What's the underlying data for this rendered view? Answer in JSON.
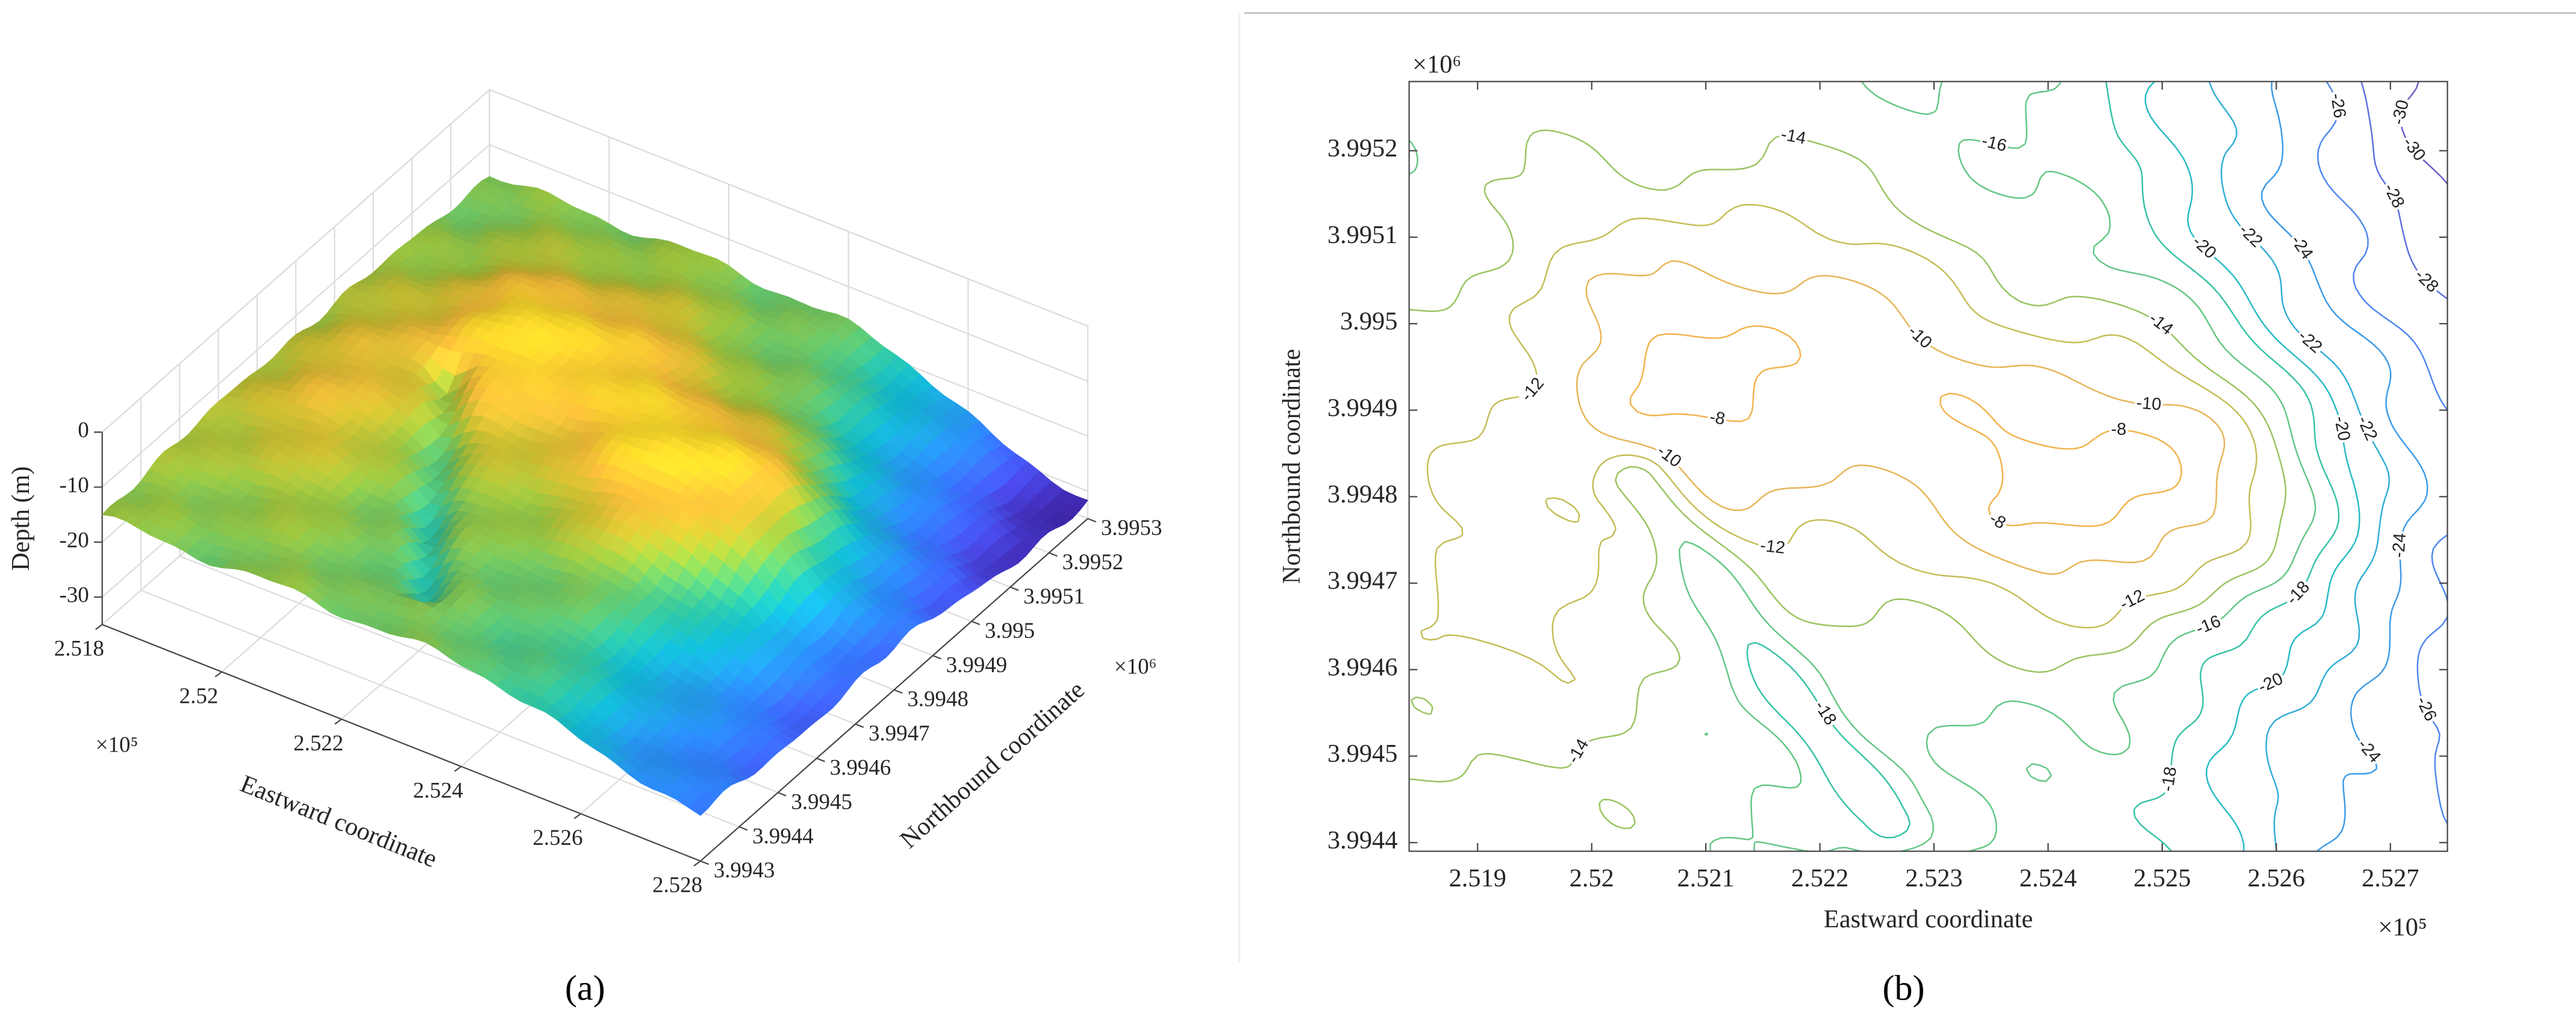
{
  "chart_data": [
    {
      "type": "surface3d",
      "panel_label": "(a)",
      "x_label": "Eastward coordinate",
      "y_label": "Northbound coordinate",
      "z_label": "Depth (m)",
      "x_multiplier": "×10⁵",
      "y_multiplier": "×10⁶",
      "xlim": [
        2.518,
        2.528
      ],
      "xticks": [
        2.518,
        2.52,
        2.522,
        2.524,
        2.526,
        2.528
      ],
      "ylim": [
        3.9943,
        3.9953
      ],
      "yticks": [
        3.9943,
        3.9944,
        3.9945,
        3.9946,
        3.9947,
        3.9948,
        3.9949,
        3.995,
        3.9951,
        3.9952,
        3.9953
      ],
      "zlim": [
        -35,
        0
      ],
      "zticks": [
        0,
        -10,
        -20,
        -30
      ],
      "grid": true,
      "clim": [
        -32,
        -8
      ],
      "colors": [
        "#3e26a8",
        "#4543d8",
        "#3c64f5",
        "#2b82f0",
        "#1e9bd8",
        "#10adc4",
        "#2bb99b",
        "#5cc06d",
        "#96bf3e",
        "#c8b930",
        "#f0b838",
        "#f5d52a"
      ]
    },
    {
      "type": "contour",
      "panel_label": "(b)",
      "x_label": "Eastward coordinate",
      "y_label": "Northbound coordinate",
      "x_multiplier": "×10⁵",
      "y_multiplier": "×10⁶",
      "xlim": [
        2.5184,
        2.5275
      ],
      "xticks": [
        2.519,
        2.52,
        2.521,
        2.522,
        2.523,
        2.524,
        2.525,
        2.526,
        2.527
      ],
      "ylim": [
        3.99439,
        3.99528
      ],
      "yticks": [
        3.9944,
        3.9945,
        3.9946,
        3.9947,
        3.9948,
        3.9949,
        3.995,
        3.9951,
        3.9952
      ],
      "levels": [
        -30,
        -28,
        -26,
        -24,
        -22,
        -20,
        -18,
        -16,
        -14,
        -12,
        -10,
        -8
      ],
      "colors": [
        "#6a5cc4",
        "#5b6fe0",
        "#4d86ee",
        "#3c9ae6",
        "#2fadd6",
        "#26bac4",
        "#34c2a6",
        "#62c684",
        "#98c35f",
        "#c4bc55",
        "#e6b455",
        "#f2b24a"
      ]
    }
  ]
}
